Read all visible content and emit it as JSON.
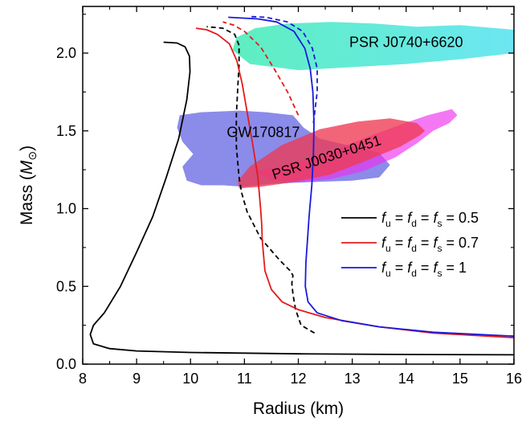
{
  "chart_data": {
    "type": "line",
    "title": "",
    "xlabel": "Radius (km)",
    "ylabel_parts": {
      "prefix": "Mass (",
      "symbol": "M",
      "sub": "⊙",
      "suffix": ")"
    },
    "xlim": [
      8,
      16
    ],
    "ylim": [
      0,
      2.3
    ],
    "x_ticks": [
      8,
      9,
      10,
      11,
      12,
      13,
      14,
      15,
      16
    ],
    "x_tick_labels": [
      "8",
      "9",
      "10",
      "11",
      "12",
      "13",
      "14",
      "15",
      "16"
    ],
    "y_ticks": [
      0,
      0.5,
      1.0,
      1.5,
      2.0
    ],
    "y_tick_labels": [
      "0.0",
      "0.5",
      "1.0",
      "1.5",
      "2.0"
    ],
    "grid": false,
    "legend_position": "bottom-right",
    "series": [
      {
        "legend": {
          "f": "f",
          "subs": [
            "u",
            "d",
            "s"
          ],
          "value": "0.5"
        },
        "color": "#000000",
        "solid": [
          [
            16.0,
            0.06
          ],
          [
            14.0,
            0.062
          ],
          [
            12.0,
            0.066
          ],
          [
            10.0,
            0.075
          ],
          [
            9.0,
            0.085
          ],
          [
            8.5,
            0.1
          ],
          [
            8.2,
            0.13
          ],
          [
            8.14,
            0.19
          ],
          [
            8.2,
            0.25
          ],
          [
            8.4,
            0.33
          ],
          [
            8.7,
            0.5
          ],
          [
            9.0,
            0.72
          ],
          [
            9.3,
            0.95
          ],
          [
            9.55,
            1.2
          ],
          [
            9.78,
            1.45
          ],
          [
            9.93,
            1.7
          ],
          [
            9.99,
            1.88
          ],
          [
            9.98,
            1.98
          ],
          [
            9.9,
            2.04
          ],
          [
            9.75,
            2.065
          ],
          [
            9.5,
            2.07
          ]
        ],
        "dashed": [
          [
            12.3,
            0.2
          ],
          [
            12.05,
            0.25
          ],
          [
            11.95,
            0.35
          ],
          [
            11.9,
            0.45
          ],
          [
            11.88,
            0.52
          ],
          [
            11.9,
            0.57
          ],
          [
            11.85,
            0.6
          ],
          [
            11.65,
            0.67
          ],
          [
            11.3,
            0.81
          ],
          [
            11.05,
            0.98
          ],
          [
            10.95,
            1.1
          ],
          [
            10.9,
            1.2
          ],
          [
            10.85,
            1.4
          ],
          [
            10.85,
            1.6
          ],
          [
            10.88,
            1.8
          ],
          [
            10.9,
            1.92
          ],
          [
            10.9,
            2.05
          ],
          [
            10.82,
            2.12
          ],
          [
            10.6,
            2.16
          ],
          [
            10.3,
            2.17
          ]
        ]
      },
      {
        "legend": {
          "f": "f",
          "subs": [
            "u",
            "d",
            "s"
          ],
          "value": "0.7"
        },
        "color": "#e41a1c",
        "solid": [
          [
            16.0,
            0.17
          ],
          [
            14.5,
            0.2
          ],
          [
            13.5,
            0.24
          ],
          [
            12.5,
            0.3
          ],
          [
            12.0,
            0.35
          ],
          [
            11.7,
            0.4
          ],
          [
            11.5,
            0.48
          ],
          [
            11.38,
            0.6
          ],
          [
            11.33,
            0.8
          ],
          [
            11.32,
            0.9
          ],
          [
            11.3,
            1.0
          ],
          [
            11.25,
            1.2
          ],
          [
            11.16,
            1.4
          ],
          [
            11.06,
            1.6
          ],
          [
            10.96,
            1.8
          ],
          [
            10.86,
            1.95
          ],
          [
            10.72,
            2.06
          ],
          [
            10.5,
            2.12
          ],
          [
            10.3,
            2.15
          ],
          [
            10.1,
            2.16
          ]
        ],
        "dashed": [
          [
            12.0,
            1.6
          ],
          [
            11.8,
            1.75
          ],
          [
            11.55,
            1.9
          ],
          [
            11.3,
            2.04
          ],
          [
            11.0,
            2.14
          ],
          [
            10.8,
            2.18
          ],
          [
            10.6,
            2.2
          ]
        ]
      },
      {
        "legend": {
          "f": "f",
          "subs": [
            "u",
            "d",
            "s"
          ],
          "value": "1"
        },
        "color": "#1a1adc",
        "solid": [
          [
            16.0,
            0.18
          ],
          [
            14.5,
            0.205
          ],
          [
            13.5,
            0.24
          ],
          [
            12.8,
            0.28
          ],
          [
            12.35,
            0.33
          ],
          [
            12.18,
            0.4
          ],
          [
            12.13,
            0.5
          ],
          [
            12.14,
            0.65
          ],
          [
            12.17,
            0.8
          ],
          [
            12.2,
            0.95
          ],
          [
            12.25,
            1.15
          ],
          [
            12.28,
            1.35
          ],
          [
            12.29,
            1.55
          ],
          [
            12.27,
            1.75
          ],
          [
            12.22,
            1.9
          ],
          [
            12.12,
            2.03
          ],
          [
            11.92,
            2.14
          ],
          [
            11.6,
            2.2
          ],
          [
            11.25,
            2.22
          ],
          [
            10.7,
            2.23
          ]
        ],
        "dashed": [
          [
            12.28,
            1.55
          ],
          [
            12.35,
            1.75
          ],
          [
            12.35,
            1.9
          ],
          [
            12.26,
            2.03
          ],
          [
            12.08,
            2.14
          ],
          [
            11.8,
            2.2
          ],
          [
            11.4,
            2.23
          ],
          [
            11.1,
            2.235
          ]
        ]
      }
    ],
    "regions": [
      {
        "label": "PSR J0740+6620",
        "color": "#20e8a8",
        "color2": "#33ddee",
        "opacity": 0.72,
        "polygon": [
          [
            10.78,
            2.02
          ],
          [
            11.1,
            1.93
          ],
          [
            12.0,
            1.89
          ],
          [
            13.0,
            1.91
          ],
          [
            14.0,
            1.93
          ],
          [
            15.0,
            1.96
          ],
          [
            16.0,
            2.0
          ],
          [
            16.0,
            2.15
          ],
          [
            15.0,
            2.18
          ],
          [
            14.2,
            2.17
          ],
          [
            13.4,
            2.19
          ],
          [
            12.6,
            2.2
          ],
          [
            11.8,
            2.19
          ],
          [
            11.2,
            2.16
          ],
          [
            10.85,
            2.1
          ]
        ]
      },
      {
        "label": "GW170817",
        "color": "#4444dd",
        "opacity": 0.62,
        "polygon": [
          [
            9.8,
            1.6
          ],
          [
            10.2,
            1.62
          ],
          [
            10.9,
            1.63
          ],
          [
            11.4,
            1.62
          ],
          [
            11.9,
            1.6
          ],
          [
            12.1,
            1.52
          ],
          [
            12.4,
            1.45
          ],
          [
            13.0,
            1.4
          ],
          [
            13.5,
            1.36
          ],
          [
            13.7,
            1.28
          ],
          [
            13.5,
            1.2
          ],
          [
            13.0,
            1.18
          ],
          [
            12.2,
            1.17
          ],
          [
            11.5,
            1.16
          ],
          [
            11.0,
            1.14
          ],
          [
            10.6,
            1.15
          ],
          [
            10.2,
            1.15
          ],
          [
            9.93,
            1.18
          ],
          [
            9.85,
            1.27
          ],
          [
            10.05,
            1.35
          ],
          [
            9.85,
            1.43
          ],
          [
            9.75,
            1.52
          ]
        ]
      },
      {
        "label": "",
        "color": "#ee30ee",
        "opacity": 0.65,
        "polygon": [
          [
            11.2,
            1.24
          ],
          [
            11.8,
            1.28
          ],
          [
            12.5,
            1.35
          ],
          [
            13.2,
            1.45
          ],
          [
            13.9,
            1.54
          ],
          [
            14.4,
            1.6
          ],
          [
            14.85,
            1.64
          ],
          [
            14.95,
            1.6
          ],
          [
            14.8,
            1.55
          ],
          [
            14.5,
            1.5
          ],
          [
            14.2,
            1.42
          ],
          [
            13.8,
            1.33
          ],
          [
            13.2,
            1.24
          ],
          [
            12.6,
            1.19
          ],
          [
            12.0,
            1.17
          ],
          [
            11.5,
            1.18
          ]
        ]
      },
      {
        "label": "PSR J0030+0451",
        "color": "#ee3a52",
        "opacity": 0.78,
        "polygon": [
          [
            10.9,
            1.13
          ],
          [
            11.3,
            1.14
          ],
          [
            11.9,
            1.17
          ],
          [
            12.6,
            1.22
          ],
          [
            13.2,
            1.3
          ],
          [
            13.9,
            1.4
          ],
          [
            14.25,
            1.47
          ],
          [
            14.35,
            1.5
          ],
          [
            14.2,
            1.55
          ],
          [
            13.7,
            1.58
          ],
          [
            13.1,
            1.56
          ],
          [
            12.4,
            1.51
          ],
          [
            11.7,
            1.41
          ],
          [
            11.1,
            1.27
          ],
          [
            10.88,
            1.18
          ]
        ]
      }
    ]
  }
}
